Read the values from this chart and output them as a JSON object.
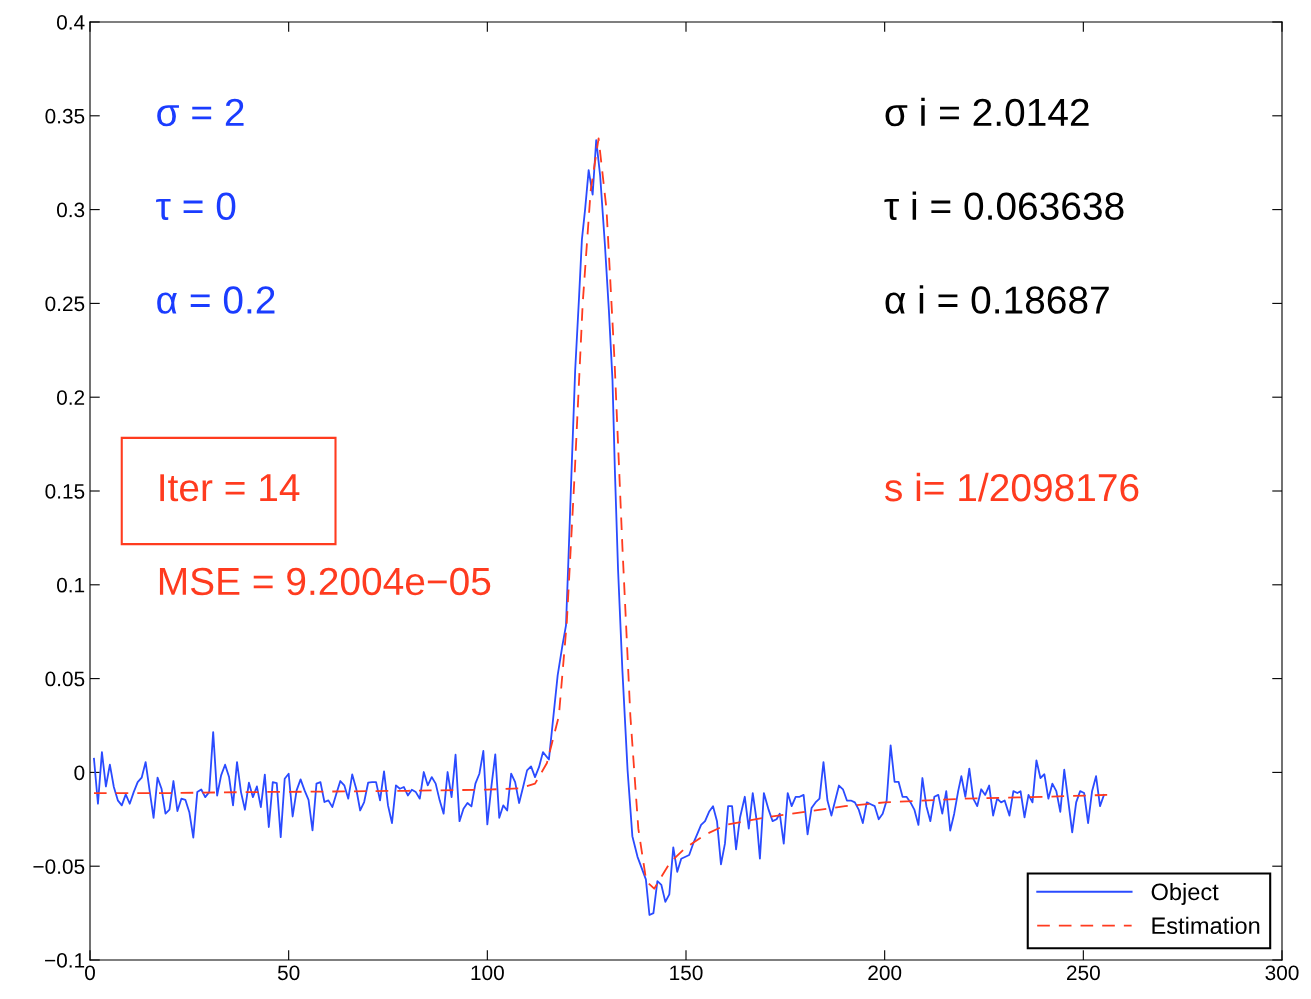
{
  "chart_data": {
    "type": "line",
    "xlim": [
      0,
      300
    ],
    "xticks": [
      0,
      50,
      100,
      150,
      200,
      250,
      300
    ],
    "ylim": [
      -0.1,
      0.4
    ],
    "yticks": [
      {
        "value": -0.1,
        "label": "−0.1"
      },
      {
        "value": -0.05,
        "label": "−0.05"
      },
      0,
      0.05,
      0.1,
      0.15,
      0.2,
      0.25,
      0.3,
      0.35,
      0.4
    ],
    "grid": false,
    "legend": "bottom right",
    "marker": "none",
    "annotations": [
      "σ = 2",
      "τ = 0",
      "α = 0.2",
      "σ i = 2.0142",
      "τ i = 0.063638",
      "α i = 0.18687",
      "Iter = 14",
      "MSE = 9.2004e−05",
      "s i= 1/2098176"
    ],
    "series": [
      {
        "name": "Object",
        "color": "#2a4bff",
        "line_style": "solid",
        "x": [
          1,
          2,
          3,
          4,
          5,
          6,
          7,
          8,
          9,
          10,
          11,
          12,
          13,
          14,
          15,
          16,
          17,
          18,
          19,
          20,
          21,
          22,
          23,
          24,
          25,
          26,
          27,
          28,
          29,
          30,
          31,
          32,
          33,
          34,
          35,
          36,
          37,
          38,
          39,
          40,
          41,
          42,
          43,
          44,
          45,
          46,
          47,
          48,
          49,
          50,
          51,
          52,
          53,
          54,
          55,
          56,
          57,
          58,
          59,
          60,
          61,
          62,
          63,
          64,
          65,
          66,
          67,
          68,
          69,
          70,
          71,
          72,
          73,
          74,
          75,
          76,
          77,
          78,
          79,
          80,
          81,
          82,
          83,
          84,
          85,
          86,
          87,
          88,
          89,
          90,
          91,
          92,
          93,
          94,
          95,
          96,
          97,
          98,
          99,
          100,
          101,
          102,
          103,
          104,
          105,
          106,
          107,
          108,
          109,
          110,
          111,
          112,
          113,
          114,
          115.5,
          117.7,
          118.9,
          119.8,
          120.4,
          121.2,
          122.1,
          123.1,
          123.8,
          124.6,
          125.5,
          126.5,
          127.4,
          128.4,
          129.6,
          130.6,
          131.5,
          132.1,
          132.9,
          134.0,
          135.3,
          136.5,
          137.8,
          139.9,
          140.8,
          141.8,
          142.8,
          143.8,
          144.8,
          145.8,
          146.8,
          147.8,
          148.8,
          150.8,
          151.8,
          152.8,
          153.8,
          154.8,
          155.8,
          156.8,
          157.8,
          158.8,
          159.8,
          160.6,
          161.6,
          162.6,
          163.6,
          164.8,
          165.8,
          166.8,
          167.8,
          168.6,
          169.6,
          170.8,
          171.8,
          172.8,
          173.6,
          174.6,
          175.6,
          176.6,
          177.6,
          178.6,
          179.6,
          180.6,
          181.6,
          182.6,
          183.6,
          184.6,
          185.6,
          186.6,
          188.5,
          189.5,
          190.5,
          191.5,
          192.5,
          193.5,
          194.5,
          195.5,
          196.5,
          197.5,
          198.5,
          199.5,
          200.5,
          201.5,
          202.5,
          203.5,
          204.5,
          205.5,
          206.5,
          207.5,
          208.5,
          209.5,
          210.5,
          211.5,
          212.5,
          213.5,
          214.5,
          215.5,
          216.5,
          217.5,
          218.5,
          219.3,
          220.3,
          221.3,
          222.3,
          223.3,
          224.3,
          225.3,
          226.3,
          227.3,
          228.3,
          229.3,
          230.2,
          231.4,
          232.4,
          233.4,
          234.2,
          235.2,
          236.2,
          237.2,
          238.2,
          239.2,
          240.2,
          241.2,
          242.2,
          243.2,
          244.2,
          245.2,
          246.2,
          247.2,
          248.2,
          249.2,
          250.2,
          251.2,
          252.2,
          253.2,
          254.2,
          255.2
        ],
        "values": [
          0.0073,
          -0.0167,
          0.0108,
          -0.0075,
          0.0041,
          -0.0078,
          -0.0149,
          -0.0176,
          -0.0117,
          -0.0167,
          -0.0105,
          -0.0052,
          -0.0028,
          0.0055,
          -0.0096,
          -0.0242,
          -0.0028,
          -0.0087,
          -0.022,
          -0.0199,
          -0.0046,
          -0.0206,
          -0.014,
          -0.0146,
          -0.0212,
          -0.0348,
          -0.0105,
          -0.0091,
          -0.0132,
          -0.0105,
          0.0215,
          -0.0123,
          -0.0016,
          0.0041,
          -0.0025,
          -0.0176,
          0.0055,
          -0.0105,
          -0.0199,
          -0.0055,
          -0.0132,
          -0.0075,
          -0.0185,
          -0.0012,
          -0.0291,
          -0.0052,
          -0.0057,
          -0.0345,
          -0.0034,
          -0.0007,
          -0.0235,
          -0.0096,
          -0.0037,
          -0.0096,
          -0.0146,
          -0.0309,
          -0.006,
          -0.0052,
          -0.0158,
          -0.0149,
          -0.0185,
          -0.0114,
          -0.0046,
          -0.0069,
          -0.014,
          -0.0011,
          -0.0087,
          -0.0203,
          -0.0158,
          -0.0055,
          -0.0052,
          -0.0052,
          -0.0149,
          0.0005,
          -0.0176,
          -0.027,
          -0.0069,
          -0.0087,
          -0.0078,
          -0.0123,
          -0.0092,
          -0.0105,
          -0.014,
          0.0002,
          -0.0069,
          -0.0025,
          -0.006,
          -0.0149,
          -0.022,
          0.0002,
          -0.0132,
          0.0094,
          -0.026,
          -0.0194,
          -0.0163,
          -0.0181,
          -0.006,
          -0.0007,
          0.0114,
          -0.0277,
          -0.0078,
          0.0096,
          -0.0242,
          -0.0176,
          -0.0203,
          -0.0007,
          -0.0052,
          -0.0163,
          -0.0078,
          0.0011,
          0.0032,
          -0.0025,
          0.0028,
          0.0108,
          0.0069,
          0.0517,
          0.0677,
          0.0784,
          0.113,
          0.161,
          0.214,
          0.254,
          0.284,
          0.3,
          0.321,
          0.308,
          0.337,
          0.318,
          0.281,
          0.246,
          0.209,
          0.161,
          0.108,
          0.054,
          0.001,
          -0.034,
          -0.045,
          -0.057,
          -0.076,
          -0.075,
          -0.058,
          -0.06,
          -0.069,
          -0.065,
          -0.04,
          -0.053,
          -0.046,
          -0.044,
          -0.038,
          -0.033,
          -0.028,
          -0.026,
          -0.021,
          -0.018,
          -0.026,
          -0.049,
          -0.038,
          -0.018,
          -0.018,
          -0.041,
          -0.024,
          -0.013,
          -0.03,
          -0.011,
          -0.026,
          -0.046,
          -0.011,
          -0.02,
          -0.026,
          -0.025,
          -0.022,
          -0.038,
          -0.011,
          -0.018,
          -0.013,
          -0.013,
          -0.012,
          -0.033,
          -0.019,
          -0.016,
          -0.014,
          0.0055,
          -0.015,
          -0.023,
          -0.007,
          -0.009,
          -0.015,
          -0.015,
          -0.016,
          -0.02,
          -0.027,
          -0.016,
          -0.017,
          -0.018,
          -0.025,
          -0.022,
          -0.015,
          0.0144,
          -0.005,
          -0.005,
          -0.013,
          -0.013,
          -0.016,
          -0.02,
          -0.028,
          -0.003,
          -0.018,
          -0.026,
          -0.013,
          -0.012,
          -0.022,
          -0.01,
          -0.031,
          -0.022,
          -0.01,
          -0.002,
          -0.013,
          0.002,
          -0.014,
          -0.018,
          -0.009,
          -0.012,
          -0.007,
          -0.023,
          -0.014,
          -0.016,
          -0.015,
          -0.023,
          -0.01,
          -0.011,
          -0.01,
          -0.024,
          -0.012,
          -0.016,
          0.0064,
          -0.003,
          -0.001,
          -0.014,
          -0.006,
          -0.01,
          -0.021,
          0.0014,
          -0.015,
          -0.032,
          -0.016,
          -0.01,
          -0.011,
          -0.027,
          -0.01,
          -0.002,
          -0.018,
          -0.012
        ]
      },
      {
        "name": "Estimation",
        "color": "#ff3b1f",
        "line_style": "dashed",
        "x": [
          1,
          20,
          40,
          60,
          80,
          100,
          108,
          112,
          115,
          118,
          120,
          122,
          124,
          126,
          128,
          130,
          132,
          134,
          136,
          138,
          140,
          142,
          144,
          146,
          150,
          155,
          160,
          170,
          180,
          190,
          200,
          220,
          240,
          256
        ],
        "values": [
          -0.011,
          -0.011,
          -0.0105,
          -0.0102,
          -0.0098,
          -0.0092,
          -0.0085,
          -0.006,
          0.005,
          0.03,
          0.08,
          0.16,
          0.25,
          0.31,
          0.338,
          0.3,
          0.22,
          0.12,
          0.03,
          -0.03,
          -0.058,
          -0.062,
          -0.055,
          -0.048,
          -0.04,
          -0.033,
          -0.028,
          -0.024,
          -0.021,
          -0.018,
          -0.016,
          -0.014,
          -0.013,
          -0.012
        ]
      }
    ]
  }
}
